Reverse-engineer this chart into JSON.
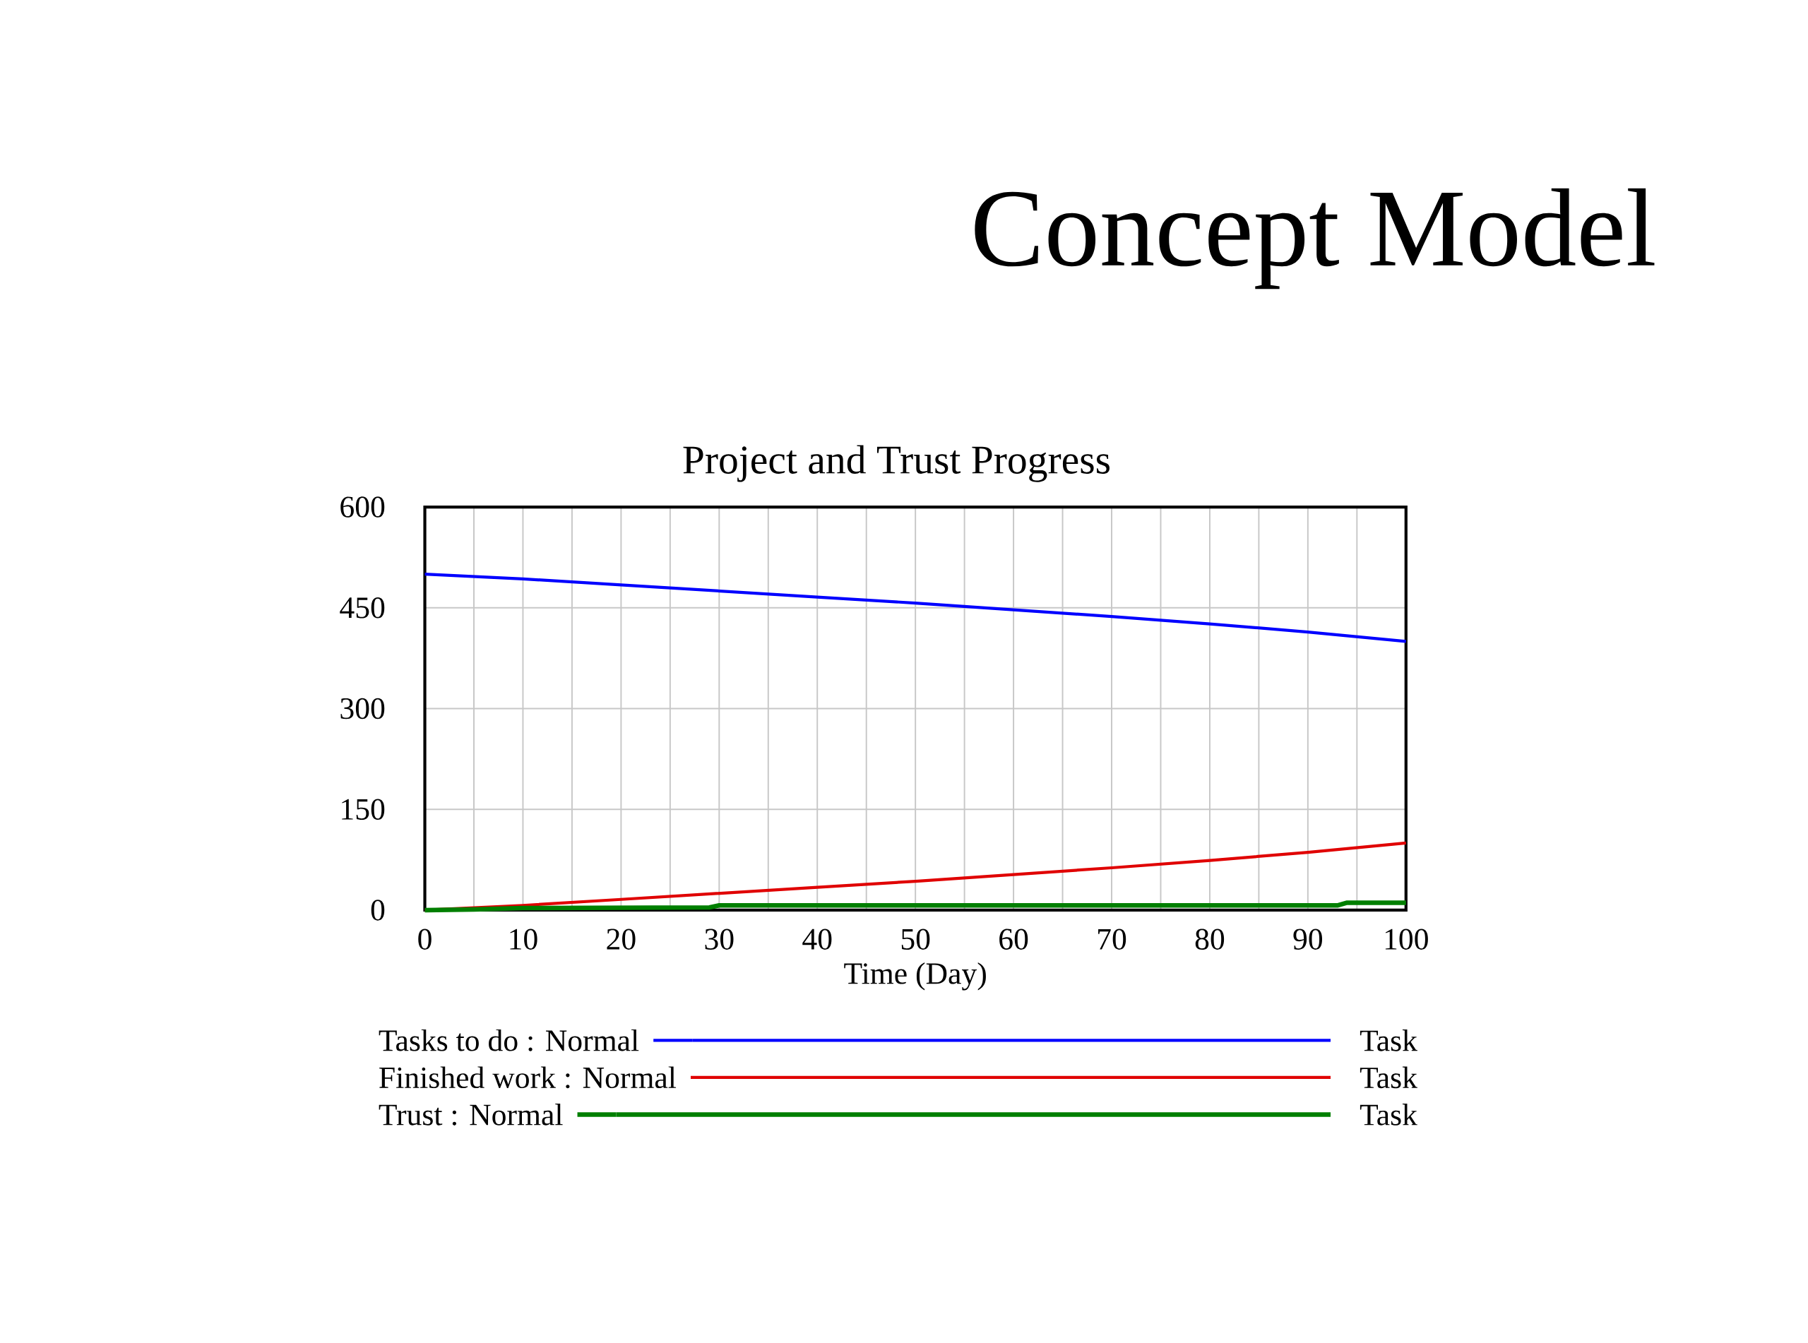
{
  "chart_data": {
    "type": "line",
    "title": "Concept Model",
    "subtitle": "Project and Trust Progress",
    "xlabel": "Time (Day)",
    "x": [
      0,
      10,
      20,
      30,
      40,
      50,
      60,
      70,
      80,
      90,
      100
    ],
    "series": [
      {
        "name": "Tasks to do : Normal",
        "color": "#0000ff",
        "values": [
          500,
          493,
          484,
          475,
          466,
          457,
          447,
          437,
          426,
          414,
          400
        ]
      },
      {
        "name": "Finished work : Normal",
        "color": "#e00000",
        "values": [
          0,
          7,
          16,
          25,
          34,
          43,
          53,
          63,
          74,
          86,
          100
        ]
      },
      {
        "name": "Trust : Normal",
        "color": "#007f00",
        "x": [
          0,
          5,
          10,
          29,
          30,
          93,
          94,
          100
        ],
        "values": [
          0,
          1,
          3,
          4,
          7,
          7,
          11,
          11
        ]
      }
    ],
    "xlim": [
      0,
      100
    ],
    "ylim": [
      0,
      600
    ],
    "xticks": [
      0,
      {
        "value": 5,
        "label": null
      },
      10,
      {
        "value": 15,
        "label": null
      },
      20,
      {
        "value": 25,
        "label": null
      },
      30,
      {
        "value": 35,
        "label": null
      },
      40,
      {
        "value": 45,
        "label": null
      },
      50,
      {
        "value": 55,
        "label": null
      },
      60,
      {
        "value": 65,
        "label": null
      },
      70,
      {
        "value": 75,
        "label": null
      },
      80,
      {
        "value": 85,
        "label": null
      },
      90,
      {
        "value": 95,
        "label": null
      },
      100
    ],
    "yticks": [
      0,
      150,
      300,
      450,
      600
    ],
    "grid": true,
    "legend": "bottom",
    "line_style": "solid",
    "annotations": [
      "Task",
      "Task",
      "Task"
    ]
  }
}
